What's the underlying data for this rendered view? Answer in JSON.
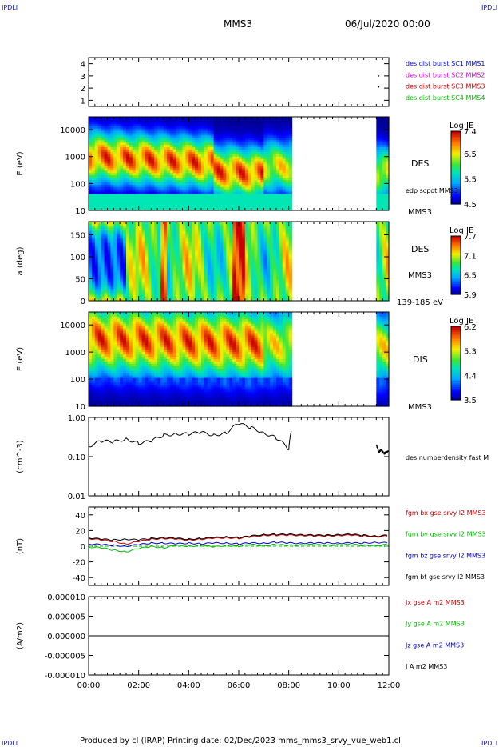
{
  "header": {
    "corner_tl": "IPDLI",
    "corner_tr": "IPDLI",
    "corner_bl": "IPDLI",
    "corner_br": "IPDLI",
    "title": "MMS3",
    "date": "06/Jul/2020 00:00"
  },
  "footer": {
    "text": "Produced by cl (IRAP)   Printing date: 02/Dec/2023   mms_mms3_srvy_vue_web1.cl"
  },
  "time_axis": {
    "ticks": [
      "00:00",
      "02:00",
      "04:00",
      "06:00",
      "08:00",
      "10:00",
      "12:00"
    ],
    "range_hours": [
      0,
      12
    ],
    "data_gap_hours": [
      8.1,
      11.5
    ]
  },
  "colors": {
    "blue": "#0000cc",
    "magenta": "#cc00cc",
    "red": "#cc0000",
    "green": "#00bb00",
    "black": "#000000"
  },
  "chart_data": [
    {
      "type": "line",
      "panel": "burst",
      "ylabel": "",
      "ylim": [
        0.5,
        4.5
      ],
      "yticks": [
        "1",
        "2",
        "3",
        "4"
      ],
      "legend": [
        "des dist burst SC1 MMS1",
        "des dist burst SC2 MMS2",
        "des dist burst SC3 MMS3",
        "des dist burst SC4 MMS4"
      ],
      "legend_colors": [
        "#0000cc",
        "#cc00cc",
        "#cc0000",
        "#00bb00"
      ],
      "points": [
        {
          "t": 11.6,
          "y": 3.0
        },
        {
          "t": 11.6,
          "y": 2.1
        }
      ]
    },
    {
      "type": "heatmap",
      "panel": "des-energy",
      "ylabel": "E (eV)",
      "yscale": "log",
      "ylim": [
        10,
        30000
      ],
      "yticks": [
        "10",
        "100",
        "1000",
        "10000"
      ],
      "right_labels": [
        "DES",
        "edp scpot MMS3",
        "MMS3"
      ],
      "colorbar": {
        "title": "Log JE",
        "ticks": [
          "7.4",
          "6.5",
          "5.5",
          "4.5"
        ],
        "range": [
          4.5,
          7.4
        ]
      }
    },
    {
      "type": "heatmap",
      "panel": "des-pitch",
      "ylabel": "a (deg)",
      "ylim": [
        0,
        180
      ],
      "yticks": [
        "0",
        "50",
        "100",
        "150"
      ],
      "right_labels": [
        "DES",
        "MMS3",
        "139-185 eV"
      ],
      "colorbar": {
        "title": "Log JE",
        "ticks": [
          "7.7",
          "7.1",
          "6.5",
          "5.9"
        ],
        "range": [
          5.9,
          7.7
        ]
      }
    },
    {
      "type": "heatmap",
      "panel": "dis-energy",
      "ylabel": "E (eV)",
      "yscale": "log",
      "ylim": [
        10,
        30000
      ],
      "yticks": [
        "10",
        "100",
        "1000",
        "10000"
      ],
      "right_labels": [
        "DIS",
        "MMS3"
      ],
      "colorbar": {
        "title": "Log JE",
        "ticks": [
          "6.2",
          "5.3",
          "4.4",
          "3.5"
        ],
        "range": [
          3.5,
          6.2
        ]
      }
    },
    {
      "type": "line",
      "panel": "density",
      "ylabel": "(cm^-3)",
      "yscale": "log",
      "ylim": [
        0.01,
        1.0
      ],
      "yticks": [
        "0.01",
        "0.10",
        "1.00"
      ],
      "legend": [
        "des numberdensity fast M"
      ],
      "series": [
        {
          "name": "des numberdensity fast M",
          "color": "#000000",
          "t": [
            0.0,
            0.5,
            1.0,
            1.5,
            2.0,
            2.5,
            3.0,
            3.5,
            4.0,
            4.5,
            5.0,
            5.5,
            6.0,
            6.5,
            7.0,
            7.5,
            8.0,
            8.1
          ],
          "y": [
            0.18,
            0.25,
            0.24,
            0.28,
            0.22,
            0.25,
            0.35,
            0.38,
            0.38,
            0.42,
            0.35,
            0.4,
            0.7,
            0.55,
            0.4,
            0.3,
            0.15,
            0.45
          ]
        },
        {
          "name": "des numberdensity fast M",
          "color": "#000000",
          "t": [
            11.5,
            11.6,
            11.7,
            11.8,
            12.0
          ],
          "y": [
            0.2,
            0.13,
            0.15,
            0.12,
            0.14
          ]
        }
      ]
    },
    {
      "type": "line",
      "panel": "magnetic-field",
      "ylabel": "(nT)",
      "ylim": [
        -50,
        50
      ],
      "yticks": [
        "-40",
        "-20",
        "0",
        "20",
        "40"
      ],
      "legend": [
        "fgm bx gse srvy l2 MMS3",
        "fgm by gse srvy l2 MMS3",
        "fgm bz gse srvy l2 MMS3",
        "fgm bt gse srvy l2 MMS3"
      ],
      "legend_colors": [
        "#cc0000",
        "#00bb00",
        "#0000cc",
        "#000000"
      ],
      "t": [
        0.0,
        0.5,
        1.0,
        1.5,
        2.0,
        2.5,
        3.0,
        3.5,
        4.0,
        4.5,
        5.0,
        5.5,
        6.0,
        6.5,
        7.0,
        7.5,
        8.0,
        8.5,
        9.0,
        9.5,
        10.0,
        10.5,
        11.0,
        11.5,
        12.0
      ],
      "series": [
        {
          "name": "fgm bx gse srvy l2 MMS3",
          "color": "#cc0000",
          "y": [
            10,
            8,
            6,
            3,
            6,
            9,
            10,
            9,
            8,
            9,
            10,
            11,
            10,
            12,
            14,
            14,
            14,
            14,
            13,
            13,
            14,
            14,
            13,
            12,
            13
          ]
        },
        {
          "name": "fgm by gse srvy l2 MMS3",
          "color": "#00bb00",
          "y": [
            -1,
            -2,
            -5,
            -7,
            -3,
            0,
            -2,
            1,
            0,
            1,
            -1,
            1,
            0,
            2,
            1,
            2,
            1,
            2,
            2,
            1,
            2,
            2,
            1,
            1,
            2
          ]
        },
        {
          "name": "fgm bz gse srvy l2 MMS3",
          "color": "#0000cc",
          "y": [
            3,
            2,
            1,
            0,
            2,
            4,
            4,
            3,
            4,
            3,
            4,
            4,
            3,
            4,
            4,
            5,
            4,
            4,
            4,
            4,
            4,
            4,
            4,
            5,
            4
          ]
        },
        {
          "name": "fgm bt gse srvy l2 MMS3",
          "color": "#000000",
          "y": [
            11,
            9,
            8,
            9,
            8,
            10,
            11,
            10,
            9,
            10,
            11,
            12,
            11,
            13,
            15,
            15,
            15,
            15,
            14,
            14,
            15,
            15,
            14,
            13,
            14
          ]
        }
      ]
    },
    {
      "type": "line",
      "panel": "current",
      "ylabel": "(A/m2)",
      "ylim": [
        -1e-05,
        1e-05
      ],
      "yticks": [
        "-0.000010",
        "-0.000005",
        "0.000000",
        "0.000005",
        "0.000010"
      ],
      "legend": [
        "Jx gse A m2 MMS3",
        "Jy gse A m2 MMS3",
        "Jz gse A m2 MMS3",
        "J A m2 MMS3"
      ],
      "legend_colors": [
        "#cc0000",
        "#00bb00",
        "#0000cc",
        "#000000"
      ],
      "series": [
        {
          "name": "J A m2 MMS3",
          "color": "#000000",
          "t": [
            0,
            12
          ],
          "y": [
            0,
            0
          ]
        }
      ]
    }
  ]
}
